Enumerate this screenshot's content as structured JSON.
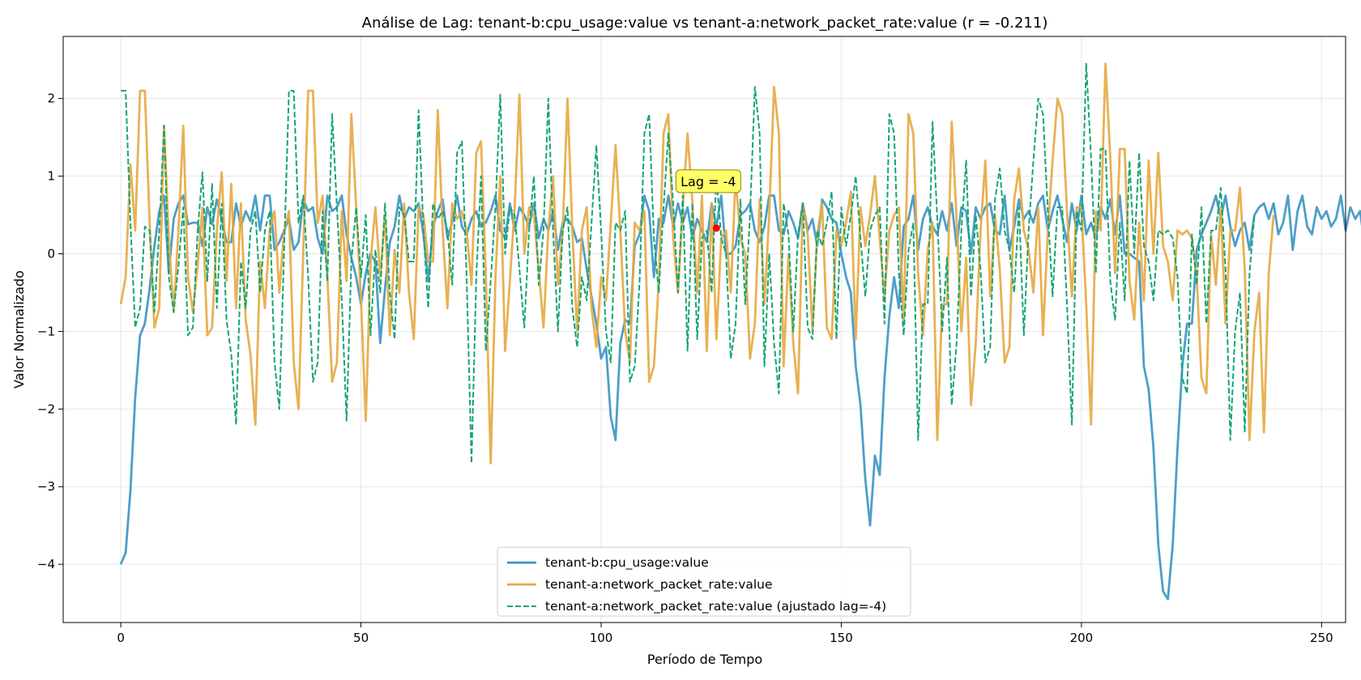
{
  "chart_data": {
    "type": "line",
    "title": "Análise de Lag: tenant-b:cpu_usage:value vs tenant-a:network_packet_rate:value (r = -0.211)",
    "xlabel": "Período de Tempo",
    "ylabel": "Valor Normalizado",
    "xlim": [
      -12,
      255
    ],
    "ylim": [
      -4.75,
      2.8
    ],
    "xticks": [
      0,
      50,
      100,
      150,
      200,
      250
    ],
    "yticks": [
      -4,
      -3,
      -2,
      -1,
      0,
      1,
      2
    ],
    "grid": true,
    "legend_position": "lower-center",
    "annotation": {
      "text": "Lag = -4",
      "x": 124,
      "y": 0.33,
      "box_color": "#ffff66",
      "marker_color": "#ff0000"
    },
    "series": [
      {
        "name": "tenant-b:cpu_usage:value",
        "color": "#3b93c3",
        "style": "solid",
        "x_start": 0,
        "values": [
          -4.0,
          -3.85,
          -3.05,
          -1.85,
          -1.05,
          -0.9,
          -0.45,
          0.1,
          0.55,
          0.75,
          -0.25,
          0.45,
          0.65,
          0.75,
          0.38,
          0.4,
          0.4,
          0.1,
          0.6,
          0.38,
          0.7,
          0.45,
          0.15,
          0.15,
          0.65,
          0.35,
          0.55,
          0.42,
          0.75,
          0.3,
          0.75,
          0.75,
          0.05,
          0.15,
          0.3,
          0.45,
          0.05,
          0.15,
          0.7,
          0.55,
          0.6,
          0.2,
          0.0,
          0.75,
          0.55,
          0.6,
          0.75,
          0.25,
          -0.05,
          -0.3,
          -0.65,
          -0.25,
          0.0,
          -0.1,
          -1.15,
          -0.45,
          0.15,
          0.35,
          0.75,
          0.45,
          0.6,
          0.55,
          0.65,
          0.25,
          -0.35,
          0.35,
          0.55,
          0.7,
          0.2,
          0.4,
          0.75,
          0.35,
          0.25,
          0.45,
          0.55,
          0.35,
          0.4,
          0.55,
          0.75,
          0.3,
          0.2,
          0.65,
          0.3,
          0.6,
          0.5,
          0.35,
          0.65,
          0.2,
          0.45,
          0.3,
          0.55,
          0.05,
          0.4,
          0.45,
          0.35,
          0.15,
          0.2,
          -0.2,
          -0.55,
          -0.9,
          -1.35,
          -1.2,
          -2.1,
          -2.4,
          -1.15,
          -0.85,
          -0.9,
          0.1,
          0.25,
          0.75,
          0.55,
          -0.3,
          0.45,
          0.4,
          0.75,
          0.35,
          0.65,
          0.4,
          0.6,
          0.2,
          0.45,
          0.3,
          0.15,
          0.65,
          0.35,
          0.75,
          0.0,
          0.0,
          0.1,
          0.5,
          0.55,
          0.65,
          0.3,
          0.15,
          0.35,
          0.75,
          0.75,
          0.3,
          0.25,
          0.55,
          0.4,
          0.2,
          0.65,
          0.3,
          0.45,
          0.1,
          0.7,
          0.6,
          0.45,
          0.4,
          0.0,
          -0.3,
          -0.5,
          -1.45,
          -1.95,
          -2.9,
          -3.5,
          -2.6,
          -2.85,
          -1.6,
          -0.8,
          -0.3,
          -0.7,
          0.35,
          0.45,
          0.75,
          0.05,
          0.45,
          0.6,
          0.35,
          0.25,
          0.55,
          0.3,
          0.65,
          0.1,
          0.6,
          0.55,
          0.0,
          0.6,
          0.45,
          0.6,
          0.65,
          0.3,
          0.25,
          0.75,
          0.05,
          0.35,
          0.7,
          0.45,
          0.55,
          0.4,
          0.65,
          0.75,
          0.3,
          0.55,
          0.75,
          0.45,
          0.15,
          0.65,
          0.3,
          0.75,
          0.25,
          0.4,
          0.2,
          0.6,
          0.45,
          0.7,
          0.25,
          0.75,
          0.0,
          0.0,
          -0.05,
          -0.1,
          -1.45,
          -1.75,
          -2.5,
          -3.75,
          -4.35,
          -4.45,
          -3.75,
          -2.5,
          -1.45,
          -0.9,
          -0.9,
          0.05,
          0.25,
          0.4,
          0.55,
          0.75,
          0.45,
          0.75,
          0.35,
          0.1,
          0.3,
          0.4,
          0.05,
          0.5,
          0.6,
          0.65,
          0.45,
          0.65,
          0.25,
          0.4,
          0.75,
          0.05,
          0.55,
          0.75,
          0.35,
          0.25,
          0.6,
          0.45,
          0.55,
          0.35,
          0.45,
          0.75,
          0.3,
          0.6,
          0.45,
          0.55,
          0.1
        ],
        "comment": ""
      },
      {
        "name": "tenant-a:network_packet_rate:value",
        "color": "#e6a840",
        "style": "solid",
        "x_start": 0,
        "values": [
          -0.65,
          -0.3,
          1.15,
          0.3,
          2.1,
          2.1,
          0.4,
          -0.95,
          -0.7,
          1.65,
          0.2,
          -0.75,
          0.3,
          1.65,
          -0.3,
          -0.75,
          -0.15,
          0.6,
          -1.05,
          -0.95,
          0.3,
          1.05,
          -0.35,
          0.9,
          -0.7,
          0.65,
          -0.85,
          -1.3,
          -2.2,
          -0.1,
          -0.7,
          0.3,
          0.55,
          -0.5,
          0.3,
          0.55,
          -1.4,
          -2.0,
          0.05,
          2.1,
          2.1,
          0.4,
          0.75,
          -0.3,
          -1.65,
          -1.4,
          0.55,
          -0.35,
          1.8,
          0.6,
          -0.6,
          -2.15,
          -0.1,
          0.6,
          -0.3,
          0.5,
          -1.05,
          0.05,
          -0.5,
          0.65,
          -0.5,
          -1.1,
          0.6,
          0.5,
          -0.1,
          -0.1,
          1.85,
          0.3,
          -0.7,
          0.65,
          0.45,
          0.55,
          0.3,
          -0.4,
          1.3,
          1.45,
          -0.3,
          -2.7,
          -0.3,
          1.0,
          -1.25,
          -0.35,
          0.6,
          2.05,
          0.0,
          0.6,
          0.5,
          -0.2,
          -0.95,
          0.3,
          1.0,
          -0.4,
          0.3,
          2.0,
          0.3,
          -1.0,
          0.3,
          0.6,
          -0.7,
          -1.2,
          -0.3,
          -0.6,
          0.4,
          1.4,
          0.3,
          -1.0,
          -1.4,
          0.4,
          0.3,
          0.55,
          -1.65,
          -1.45,
          -0.35,
          1.55,
          1.8,
          0.2,
          -0.5,
          0.6,
          1.55,
          0.65,
          -0.5,
          0.75,
          -1.25,
          0.65,
          -1.1,
          0.2,
          0.3,
          -0.5,
          1.0,
          0.2,
          0.0,
          -1.35,
          -0.9,
          0.7,
          -0.65,
          0.5,
          2.15,
          1.55,
          -1.45,
          0.0,
          -1.15,
          -1.8,
          0.65,
          0.25,
          -1.0,
          0.25,
          0.65,
          -0.95,
          -1.1,
          0.3,
          0.1,
          0.4,
          0.8,
          -1.1,
          0.6,
          0.1,
          0.5,
          1.0,
          0.2,
          -0.55,
          0.3,
          0.5,
          0.6,
          -0.9,
          1.8,
          1.55,
          -0.25,
          -1.05,
          0.05,
          0.4,
          -2.4,
          -0.65,
          -0.65,
          1.7,
          0.45,
          -1.0,
          -0.05,
          -1.95,
          -1.15,
          0.3,
          1.2,
          -0.55,
          0.5,
          -0.2,
          -1.4,
          -1.2,
          0.7,
          1.1,
          0.3,
          0.05,
          -0.5,
          0.6,
          -1.05,
          0.3,
          1.2,
          2.0,
          1.8,
          0.55,
          -0.55,
          0.6,
          0.6,
          -0.65,
          -2.2,
          0.55,
          0.3,
          2.45,
          1.25,
          -0.25,
          1.35,
          1.35,
          -0.35,
          -0.85,
          0.4,
          -0.6,
          1.2,
          0.0,
          1.3,
          0.1,
          -0.1,
          -0.6,
          0.3,
          0.25,
          0.3,
          0.2,
          -0.3,
          -1.6,
          -1.8,
          0.25,
          -0.4,
          0.6,
          -0.9,
          0.3,
          0.3,
          0.85,
          -0.2,
          -2.4,
          -1.0,
          -0.5,
          -2.3,
          -0.25,
          0.5
        ]
      },
      {
        "name": "tenant-a:network_packet_rate:value (ajustado lag=-4)",
        "color": "#14a572",
        "style": "dashed",
        "x_start": 0,
        "values": [
          2.1,
          2.1,
          0.4,
          -0.95,
          -0.7,
          0.35,
          0.3,
          -0.75,
          0.3,
          1.65,
          -0.3,
          -0.75,
          -0.15,
          0.6,
          -1.05,
          -0.95,
          0.3,
          1.05,
          -0.35,
          0.9,
          -0.7,
          0.65,
          -0.85,
          -1.3,
          -2.2,
          -0.1,
          -0.7,
          0.3,
          0.55,
          -0.5,
          0.3,
          0.55,
          -1.4,
          -2.0,
          0.05,
          2.1,
          2.1,
          0.4,
          0.75,
          -0.3,
          -1.65,
          -1.4,
          0.55,
          -0.35,
          1.8,
          0.6,
          -0.6,
          -2.15,
          -0.1,
          0.6,
          -0.3,
          0.5,
          -1.05,
          0.05,
          -0.5,
          0.65,
          -0.5,
          -1.1,
          0.6,
          0.5,
          -0.1,
          -0.1,
          1.85,
          0.3,
          -0.7,
          0.65,
          0.45,
          0.55,
          0.3,
          -0.4,
          1.3,
          1.45,
          -0.3,
          -2.7,
          -0.3,
          1.0,
          -1.25,
          -0.35,
          0.6,
          2.05,
          0.0,
          0.6,
          0.5,
          -0.2,
          -0.95,
          0.3,
          1.0,
          -0.4,
          0.3,
          2.0,
          0.3,
          -1.0,
          0.3,
          0.6,
          -0.7,
          -1.2,
          -0.3,
          -0.6,
          0.4,
          1.4,
          0.3,
          -1.0,
          -1.4,
          0.4,
          0.3,
          0.55,
          -1.65,
          -1.45,
          -0.35,
          1.55,
          1.8,
          0.2,
          -0.5,
          0.6,
          1.55,
          0.65,
          -0.5,
          0.75,
          -1.25,
          0.65,
          -1.1,
          0.2,
          0.3,
          -0.5,
          1.0,
          0.2,
          0.0,
          -1.35,
          -0.9,
          0.7,
          -0.65,
          0.5,
          2.15,
          1.55,
          -1.45,
          0.0,
          -1.15,
          -1.8,
          0.65,
          0.25,
          -1.0,
          0.25,
          0.65,
          -0.95,
          -1.1,
          0.3,
          0.1,
          0.4,
          0.8,
          -1.1,
          0.6,
          0.1,
          0.5,
          1.0,
          0.2,
          -0.55,
          0.3,
          0.5,
          0.6,
          -0.9,
          1.8,
          1.55,
          -0.25,
          -1.05,
          0.05,
          0.4,
          -2.4,
          -0.65,
          -0.65,
          1.7,
          0.45,
          -1.0,
          -0.05,
          -1.95,
          -1.15,
          0.3,
          1.2,
          -0.55,
          0.5,
          -0.2,
          -1.4,
          -1.2,
          0.7,
          1.1,
          0.3,
          0.05,
          -0.5,
          0.6,
          -1.05,
          0.3,
          1.2,
          2.0,
          1.8,
          0.55,
          -0.55,
          0.6,
          0.6,
          -0.65,
          -2.2,
          0.55,
          0.3,
          2.45,
          1.25,
          -0.25,
          1.35,
          1.35,
          -0.35,
          -0.85,
          0.4,
          -0.6,
          1.2,
          0.0,
          1.3,
          0.1,
          -0.1,
          -0.6,
          0.3,
          0.25,
          0.3,
          0.2,
          -0.3,
          -1.6,
          -1.8,
          0.25,
          -0.4,
          0.6,
          -0.9,
          0.3,
          0.3,
          0.85,
          -0.2,
          -2.4,
          -1.0,
          -0.5,
          -2.3,
          -0.25,
          0.5
        ]
      }
    ]
  }
}
